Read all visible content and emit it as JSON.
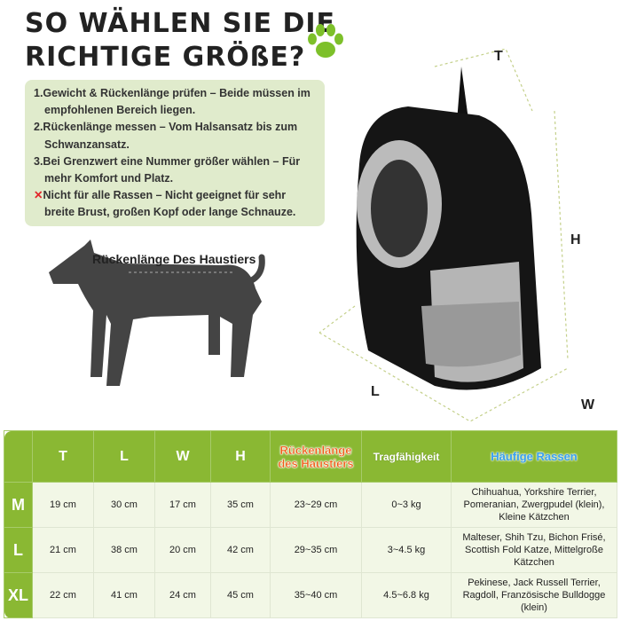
{
  "title": {
    "line1": "SO WÄHLEN SIE DIE",
    "line2": "RICHTIGE GRÖßE?"
  },
  "icons": {
    "paw": "paw-icon",
    "cross": "cross-icon"
  },
  "colors": {
    "green": "#8ab833",
    "tipbg": "#e0ebcc",
    "orange": "#f05a14",
    "blue": "#3aa0f0",
    "red": "#e2262a"
  },
  "tips": [
    "1.Gewicht & Rückenlänge prüfen – Beide müssen im empfohlenen Bereich liegen.",
    "2.Rückenlänge messen – Vom Halsansatz bis zum Schwanzansatz.",
    "3.Bei Grenzwert eine Nummer größer wählen – Für mehr Komfort und Platz.",
    "Nicht für alle Rassen – Nicht geeignet für sehr breite Brust, großen Kopf oder lange Schnauze."
  ],
  "dog_label": "Rückenlänge Des Haustiers",
  "dimensions": {
    "t": "T",
    "h": "H",
    "l": "L",
    "w": "W"
  },
  "table": {
    "headers": [
      "T",
      "L",
      "W",
      "H",
      "Rückenlänge des Haustiers",
      "Tragfähigkeit",
      "Häufige Rassen"
    ],
    "rows": [
      {
        "size": "M",
        "cells": [
          "19 cm",
          "30 cm",
          "17 cm",
          "35 cm",
          "23~29 cm",
          "0~3 kg",
          "Chihuahua, Yorkshire Terrier, Pomeranian, Zwergpudel (klein), Kleine Kätzchen"
        ]
      },
      {
        "size": "L",
        "cells": [
          "21 cm",
          "38 cm",
          "20 cm",
          "42 cm",
          "29~35 cm",
          "3~4.5 kg",
          "Malteser, Shih Tzu, Bichon Frisé, Scottish Fold Katze, Mittelgroße Kätzchen"
        ]
      },
      {
        "size": "XL",
        "cells": [
          "22 cm",
          "41 cm",
          "24 cm",
          "45 cm",
          "35~40 cm",
          "4.5~6.8 kg",
          "Pekinese, Jack Russell Terrier, Ragdoll, Französische Bulldogge (klein)"
        ]
      }
    ]
  }
}
